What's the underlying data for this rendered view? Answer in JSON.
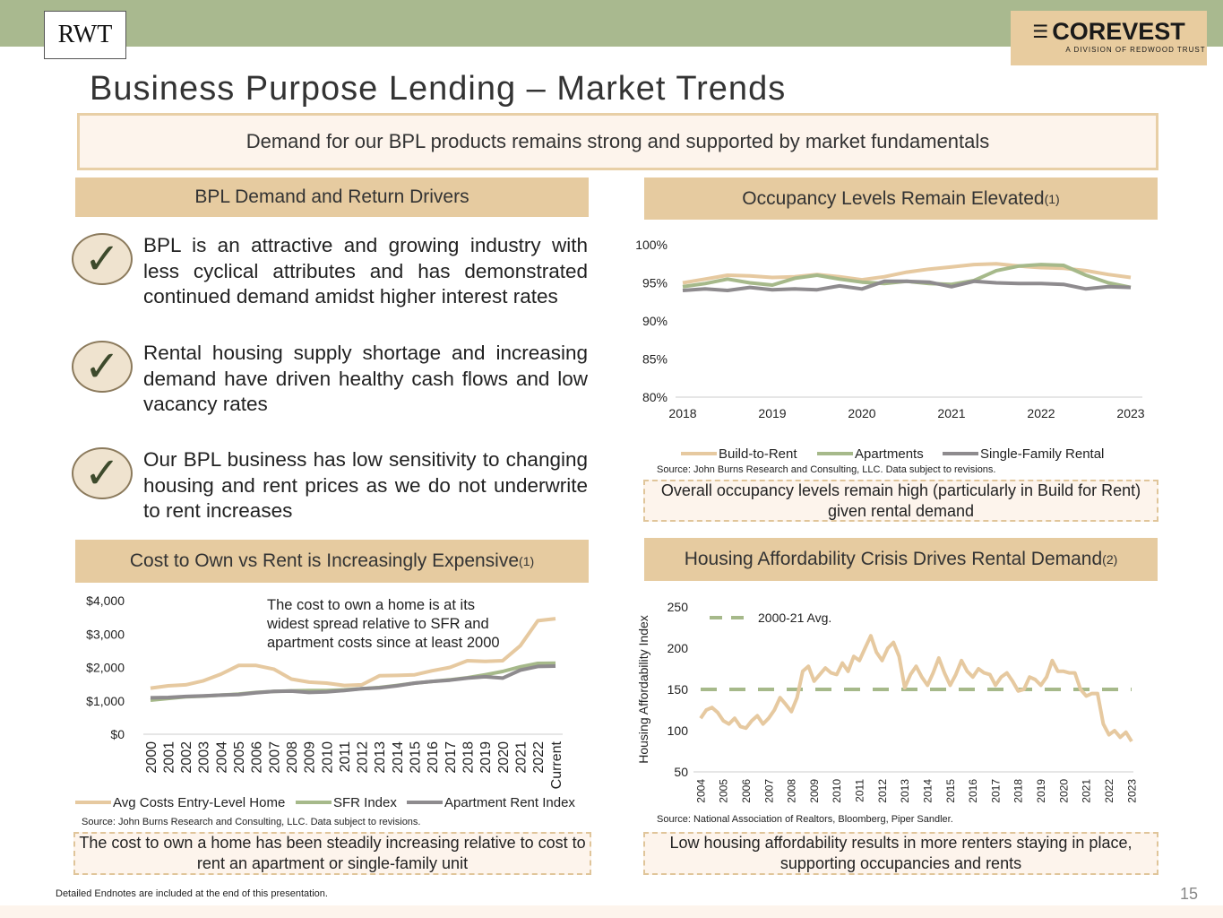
{
  "header": {
    "rwt_logo": "RWT",
    "corevest_logo": "COREVEST",
    "corevest_tagline": "A DIVISION OF REDWOOD TRUST",
    "title": "Business Purpose Lending – Market Trends"
  },
  "banner": "Demand for our BPL products remains strong and supported by market fundamentals",
  "sections": {
    "drivers": {
      "title": "BPL Demand and Return Drivers",
      "bullets": [
        "BPL is an attractive and growing industry with less cyclical attributes and has demonstrated continued demand amidst higher interest rates",
        "Rental housing supply shortage and increasing demand have driven healthy cash flows and low vacancy rates",
        "Our BPL business has low sensitivity to changing housing and rent prices as we do not underwrite to rent increases"
      ]
    },
    "occupancy": {
      "title": "Occupancy Levels Remain Elevated",
      "sup": "(1)",
      "source": "Source: John Burns Research and Consulting, LLC. Data subject to revisions.",
      "callout": "Overall occupancy levels remain high (particularly in Build for Rent) given rental demand"
    },
    "cost": {
      "title": "Cost to Own vs Rent is Increasingly Expensive",
      "sup": "(1)",
      "source": "Source: John Burns Research and Consulting, LLC. Data subject to revisions.",
      "callout": "The cost to own a home has been steadily increasing relative to cost to rent an apartment or single-family unit"
    },
    "affordability": {
      "title": "Housing Affordability Crisis Drives Rental Demand",
      "sup": "(2)",
      "source": "Source: National Association of Realtors, Bloomberg, Piper Sandler.",
      "callout": "Low housing affordability results in more renters staying in place, supporting occupancies and rents"
    }
  },
  "footer": {
    "note": "Detailed Endnotes are included at the end of this presentation.",
    "page": "15"
  },
  "colors": {
    "tan": "#e6c9a0",
    "green": "#a6b98a",
    "gray": "#8e8b8e"
  },
  "chart_data": [
    {
      "type": "line",
      "id": "occ",
      "ylim": [
        80,
        100
      ],
      "yticks": [
        "80%",
        "85%",
        "90%",
        "95%",
        "100%"
      ],
      "ytick_values": [
        80,
        85,
        90,
        95,
        100
      ],
      "xlim": [
        2018,
        2023
      ],
      "xticks": [
        "2018",
        "2019",
        "2020",
        "2021",
        "2022",
        "2023"
      ],
      "xtick_values": [
        2018,
        2019,
        2020,
        2021,
        2022,
        2023
      ],
      "x_step": 0.25,
      "series": [
        {
          "name": "Build-to-Rent",
          "color": "#e6c9a0",
          "values": [
            95,
            95.5,
            96,
            95.9,
            95.7,
            95.8,
            96.1,
            95.8,
            95.4,
            95.8,
            96.4,
            96.8,
            97.1,
            97.4,
            97.5,
            97.2,
            97,
            96.9,
            96.6,
            96.1,
            95.7
          ]
        },
        {
          "name": "Apartments",
          "color": "#a6b98a",
          "values": [
            94.5,
            94.9,
            95.5,
            95,
            94.7,
            95.6,
            96,
            95.5,
            95.1,
            94.9,
            95.2,
            94.9,
            94.8,
            95.3,
            96.6,
            97.2,
            97.4,
            97.3,
            96,
            95,
            94.4
          ]
        },
        {
          "name": "Single-Family Rental",
          "color": "#8e8b8e",
          "values": [
            94,
            94.2,
            94,
            94.4,
            94.1,
            94.2,
            94.1,
            94.6,
            94.2,
            95.2,
            95.2,
            95.1,
            94.5,
            95.2,
            95,
            94.9,
            94.9,
            94.8,
            94.2,
            94.5,
            94.4
          ]
        }
      ]
    },
    {
      "type": "line",
      "id": "cost",
      "ylim": [
        0,
        4000
      ],
      "yticks": [
        "$0",
        "$1,000",
        "$2,000",
        "$3,000",
        "$4,000"
      ],
      "ytick_values": [
        0,
        1000,
        2000,
        3000,
        4000
      ],
      "categories": [
        "2000",
        "2001",
        "2002",
        "2003",
        "2004",
        "2005",
        "2006",
        "2007",
        "2008",
        "2009",
        "2010",
        "2011",
        "2012",
        "2013",
        "2014",
        "2015",
        "2016",
        "2017",
        "2018",
        "2019",
        "2020",
        "2021",
        "2022",
        "Current"
      ],
      "annotation": "The cost to own a home is at its widest spread relative to SFR and apartment costs since at least 2000",
      "series": [
        {
          "name": "Avg Costs Entry-Level Home",
          "color": "#e6c9a0",
          "values": [
            1380,
            1450,
            1480,
            1600,
            1800,
            2060,
            2060,
            1950,
            1650,
            1560,
            1530,
            1460,
            1480,
            1750,
            1760,
            1780,
            1900,
            2000,
            2200,
            2180,
            2200,
            2650,
            3400,
            3460
          ]
        },
        {
          "name": "SFR Index",
          "color": "#a6b98a",
          "values": [
            1020,
            1070,
            1120,
            1140,
            1170,
            1200,
            1250,
            1280,
            1300,
            1310,
            1310,
            1330,
            1360,
            1400,
            1460,
            1530,
            1580,
            1630,
            1690,
            1780,
            1880,
            2020,
            2120,
            2130
          ]
        },
        {
          "name": "Apartment Rent Index",
          "color": "#8e8b8e",
          "values": [
            1090,
            1100,
            1130,
            1150,
            1170,
            1190,
            1240,
            1280,
            1290,
            1250,
            1270,
            1310,
            1360,
            1390,
            1450,
            1530,
            1580,
            1620,
            1680,
            1720,
            1680,
            1920,
            2030,
            2040
          ]
        }
      ]
    },
    {
      "type": "line",
      "id": "aff",
      "ylabel": "Housing Affordability Index",
      "ylim": [
        50,
        250
      ],
      "yticks": [
        "50",
        "100",
        "150",
        "200",
        "250"
      ],
      "ytick_values": [
        50,
        100,
        150,
        200,
        250
      ],
      "xlim": [
        2004,
        2023
      ],
      "xticks": [
        "2004",
        "2005",
        "2006",
        "2007",
        "2008",
        "2009",
        "2010",
        "2011",
        "2012",
        "2013",
        "2014",
        "2015",
        "2016",
        "2017",
        "2018",
        "2019",
        "2020",
        "2021",
        "2022",
        "2023"
      ],
      "xtick_values": [
        2004,
        2005,
        2006,
        2007,
        2008,
        2009,
        2010,
        2011,
        2012,
        2013,
        2014,
        2015,
        2016,
        2017,
        2018,
        2019,
        2020,
        2021,
        2022,
        2023
      ],
      "x_step": 0.25,
      "reference": {
        "name": "2000-21 Avg.",
        "value": 150,
        "color": "#a6b98a"
      },
      "series": [
        {
          "name": "Housing Affordability Index",
          "color": "#e6c9a0",
          "values": [
            115,
            125,
            128,
            122,
            112,
            108,
            115,
            105,
            103,
            112,
            118,
            108,
            115,
            125,
            140,
            132,
            123,
            140,
            172,
            178,
            160,
            168,
            176,
            170,
            168,
            182,
            172,
            190,
            185,
            200,
            215,
            195,
            185,
            200,
            207,
            190,
            152,
            168,
            178,
            165,
            155,
            170,
            188,
            170,
            155,
            168,
            185,
            172,
            165,
            175,
            170,
            168,
            155,
            165,
            170,
            160,
            148,
            150,
            165,
            162,
            155,
            165,
            185,
            172,
            172,
            170,
            170,
            150,
            142,
            145,
            145,
            108,
            95,
            100,
            92,
            98,
            87
          ]
        }
      ]
    }
  ]
}
